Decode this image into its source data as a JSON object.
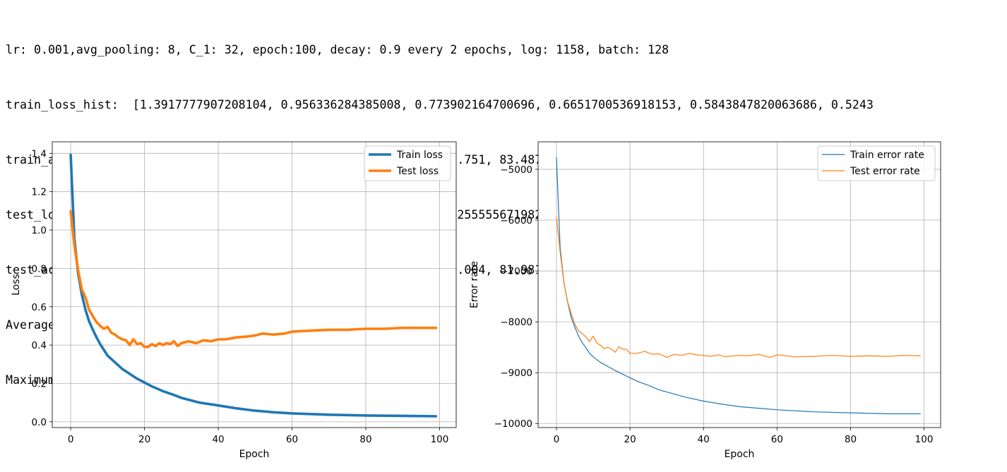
{
  "console": {
    "lines": [
      "lr: 0.001,avg_pooling: 8, C_1: 32, epoch:100, decay: 0.9 every 2 epochs, log: 1158, batch: 128",
      "train_loss_hist:  [1.3917777907208104, 0.956336284385008, 0.773902164700696, 0.6651700536918153, 0.5843847820063686, 0.5243",
      "train_accuracy_hist:  [48.65, 66.026, 72.636, 76.669, 79.709, 81.751, 83.487, 84.745, 85.671, 86.813, 87.675, 88.237, 89.16",
      "test_loss_hist:  [1.0984665147865875, 0.9204433213306379, 0.7914255555671982, 0.6901946939245055, 0.6490651263466364, 0.584",
      "test_accuracy_hist:  [60.522, 67.345, 72.082, 75.929, 78.204, 80.004, 81.981, 82.555, 83.455, 82.921, 84.345, 84.533, 84.99",
      "Average testing accuracy is among 100 epochs 86.44597%",
      "Maximum testing accuracy is 88.152%"
    ]
  },
  "chart_data": [
    {
      "type": "line",
      "xlabel": "Epoch",
      "ylabel": "Loss",
      "xlim": [
        -5,
        104.5
      ],
      "ylim": [
        -0.03,
        1.46
      ],
      "xticks": [
        "0",
        "20",
        "40",
        "60",
        "80",
        "100"
      ],
      "xtick_values": [
        0,
        20,
        40,
        60,
        80,
        100
      ],
      "yticks": [
        "0.0",
        "0.2",
        "0.4",
        "0.6",
        "0.8",
        "1.0",
        "1.2",
        "1.4"
      ],
      "ytick_values": [
        0,
        0.2,
        0.4,
        0.6,
        0.8,
        1.0,
        1.2,
        1.4
      ],
      "grid": true,
      "legend_position": "top-right",
      "series": [
        {
          "name": "Train loss",
          "color": "#1f77b4",
          "x": [
            0,
            1,
            2,
            3,
            4,
            5,
            6,
            7,
            8,
            9,
            10,
            12,
            14,
            16,
            18,
            20,
            22,
            25,
            28,
            30,
            35,
            40,
            45,
            50,
            55,
            60,
            70,
            80,
            90,
            99
          ],
          "values": [
            1.392,
            0.956,
            0.774,
            0.665,
            0.584,
            0.524,
            0.48,
            0.44,
            0.405,
            0.375,
            0.345,
            0.31,
            0.275,
            0.25,
            0.225,
            0.205,
            0.185,
            0.16,
            0.14,
            0.125,
            0.1,
            0.085,
            0.07,
            0.058,
            0.05,
            0.044,
            0.037,
            0.033,
            0.031,
            0.029
          ]
        },
        {
          "name": "Test loss",
          "color": "#ff7f0e",
          "x": [
            0,
            1,
            2,
            3,
            4,
            5,
            6,
            7,
            8,
            9,
            10,
            11,
            12,
            13,
            14,
            15,
            16,
            17,
            18,
            19,
            20,
            21,
            22,
            23,
            24,
            25,
            26,
            27,
            28,
            29,
            30,
            32,
            34,
            36,
            38,
            40,
            42,
            45,
            48,
            50,
            52,
            55,
            58,
            60,
            65,
            70,
            75,
            80,
            85,
            90,
            95,
            99
          ],
          "values": [
            1.098,
            0.92,
            0.791,
            0.69,
            0.649,
            0.584,
            0.55,
            0.52,
            0.5,
            0.485,
            0.495,
            0.465,
            0.455,
            0.44,
            0.43,
            0.425,
            0.4,
            0.43,
            0.405,
            0.41,
            0.39,
            0.39,
            0.405,
            0.395,
            0.41,
            0.4,
            0.41,
            0.405,
            0.42,
            0.395,
            0.41,
            0.42,
            0.41,
            0.425,
            0.42,
            0.43,
            0.43,
            0.44,
            0.445,
            0.45,
            0.46,
            0.455,
            0.46,
            0.47,
            0.475,
            0.48,
            0.48,
            0.485,
            0.485,
            0.49,
            0.49,
            0.49
          ]
        }
      ]
    },
    {
      "type": "line",
      "xlabel": "Epoch",
      "ylabel": "Error rate",
      "xlim": [
        -5,
        104.5
      ],
      "ylim": [
        -10080,
        -4460
      ],
      "xticks": [
        "0",
        "20",
        "40",
        "60",
        "80",
        "100"
      ],
      "xtick_values": [
        0,
        20,
        40,
        60,
        80,
        100
      ],
      "yticks": [
        "−5000",
        "−6000",
        "−7000",
        "−8000",
        "−9000",
        "−10000"
      ],
      "ytick_values": [
        -5000,
        -6000,
        -7000,
        -8000,
        -9000,
        -10000
      ],
      "grid": true,
      "legend_position": "top-right",
      "series": [
        {
          "name": "Train error rate",
          "color": "#1f77b4",
          "x": [
            0,
            1,
            2,
            3,
            4,
            5,
            6,
            7,
            8,
            9,
            10,
            12,
            14,
            16,
            18,
            20,
            22,
            25,
            28,
            30,
            35,
            40,
            45,
            50,
            55,
            60,
            70,
            80,
            90,
            99
          ],
          "values": [
            -4770,
            -6540,
            -7210,
            -7600,
            -7910,
            -8110,
            -8280,
            -8410,
            -8510,
            -8620,
            -8690,
            -8800,
            -8880,
            -8960,
            -9030,
            -9100,
            -9170,
            -9250,
            -9340,
            -9380,
            -9480,
            -9560,
            -9620,
            -9670,
            -9700,
            -9730,
            -9770,
            -9790,
            -9810,
            -9810
          ]
        },
        {
          "name": "Test error rate",
          "color": "#ff7f0e",
          "x": [
            0,
            1,
            2,
            3,
            4,
            5,
            6,
            7,
            8,
            9,
            10,
            11,
            12,
            13,
            14,
            15,
            16,
            17,
            18,
            19,
            20,
            22,
            24,
            26,
            28,
            30,
            32,
            34,
            36,
            38,
            40,
            42,
            44,
            46,
            48,
            50,
            52,
            55,
            58,
            60,
            65,
            70,
            75,
            80,
            85,
            90,
            95,
            99
          ],
          "values": [
            -5940,
            -6630,
            -7210,
            -7600,
            -7830,
            -8050,
            -8180,
            -8230,
            -8300,
            -8390,
            -8280,
            -8420,
            -8460,
            -8530,
            -8500,
            -8540,
            -8600,
            -8490,
            -8540,
            -8540,
            -8620,
            -8620,
            -8580,
            -8640,
            -8630,
            -8700,
            -8640,
            -8660,
            -8620,
            -8650,
            -8660,
            -8680,
            -8650,
            -8690,
            -8670,
            -8660,
            -8670,
            -8640,
            -8700,
            -8650,
            -8690,
            -8680,
            -8660,
            -8680,
            -8670,
            -8680,
            -8660,
            -8670
          ]
        }
      ]
    }
  ]
}
